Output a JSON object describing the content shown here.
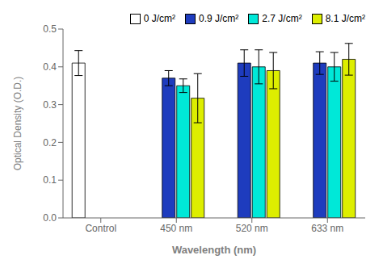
{
  "chart_data": {
    "type": "bar",
    "categories": [
      "Control",
      "450 nm",
      "520 nm",
      "633 nm"
    ],
    "series": [
      {
        "name": "0 J/cm²",
        "color": "#ffffff",
        "values": [
          0.41,
          null,
          null,
          null
        ],
        "errors": [
          0.033,
          null,
          null,
          null
        ]
      },
      {
        "name": "0.9 J/cm²",
        "color": "#1e3cbe",
        "values": [
          null,
          0.37,
          0.41,
          0.41
        ],
        "errors": [
          null,
          0.02,
          0.035,
          0.03
        ]
      },
      {
        "name": "2.7 J/cm²",
        "color": "#00e8d8",
        "values": [
          null,
          0.35,
          0.4,
          0.4
        ],
        "errors": [
          null,
          0.018,
          0.045,
          0.038
        ]
      },
      {
        "name": "8.1 J/cm²",
        "color": "#ddee00",
        "values": [
          null,
          0.317,
          0.39,
          0.42
        ],
        "errors": [
          null,
          0.065,
          0.048,
          0.042
        ]
      }
    ],
    "xlabel": "Wavelength (nm)",
    "ylabel": "Optical Density (O.D.)",
    "ylim": [
      0,
      0.5
    ],
    "yticks": [
      {
        "value": 0,
        "label": "0.0"
      },
      0.1,
      0.2,
      0.3,
      0.4,
      0.5
    ],
    "grid": false,
    "legend": "upper right"
  }
}
